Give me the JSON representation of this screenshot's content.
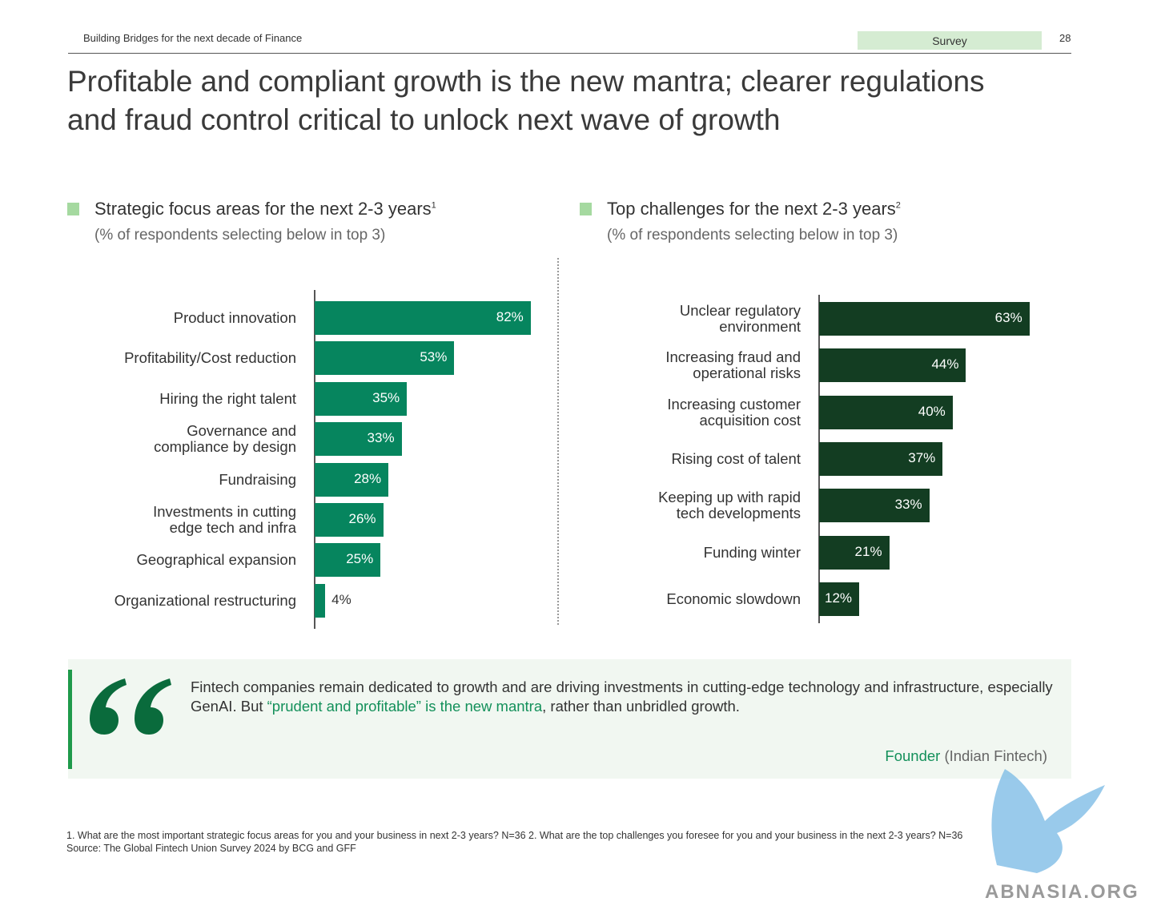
{
  "header": {
    "running_title": "Building Bridges for the next decade of Finance",
    "section": "Survey",
    "page": "28"
  },
  "title": "Profitable and compliant growth is the new mantra; clearer regulations\nand fraud control critical to unlock next wave of growth",
  "chart_data": [
    {
      "type": "bar",
      "orientation": "horizontal",
      "title": "Strategic focus areas for the next 2-3 years",
      "title_note": "1",
      "subtitle": "(% of respondents selecting below in top 3)",
      "categories": [
        "Product innovation",
        "Profitability/Cost reduction",
        "Hiring the right talent",
        "Governance and\ncompliance by design",
        "Fundraising",
        "Investments in cutting\nedge tech and infra",
        "Geographical expansion",
        "Organizational restructuring"
      ],
      "values": [
        82,
        53,
        35,
        33,
        28,
        26,
        25,
        4
      ],
      "value_labels": [
        "82%",
        "53%",
        "35%",
        "33%",
        "28%",
        "26%",
        "25%",
        "4%"
      ],
      "color": "#06855e"
    },
    {
      "type": "bar",
      "orientation": "horizontal",
      "title": "Top challenges for the next 2-3 years",
      "title_note": "2",
      "subtitle": "(% of respondents selecting below in top 3)",
      "categories": [
        "Unclear regulatory\nenvironment",
        "Increasing fraud and\noperational risks",
        "Increasing customer\nacquisition cost",
        "Rising cost of talent",
        "Keeping up with rapid\ntech developments",
        "Funding winter",
        "Economic slowdown"
      ],
      "values": [
        63,
        44,
        40,
        37,
        33,
        21,
        12
      ],
      "value_labels": [
        "63%",
        "44%",
        "40%",
        "37%",
        "33%",
        "21%",
        "12%"
      ],
      "color": "#133d22"
    }
  ],
  "quote": {
    "parts": [
      "Fintech companies remain dedicated to growth and are driving investments in cutting-edge technology and infrastructure, especially GenAI. But ",
      "“prudent and profitable” is the new mantra",
      ", rather than unbridled growth."
    ],
    "attribution": "Founder",
    "attribution_detail": "(Indian Fintech)"
  },
  "footnotes": [
    "1. What are the most important strategic focus areas for you and your business in next 2-3 years? N=36 2. What are the top challenges you foresee for you and your business in the next 2-3 years? N=36",
    "Source: The Global Fintech Union Survey 2024 by BCG and GFF"
  ],
  "watermark": "ABNASIA.ORG"
}
